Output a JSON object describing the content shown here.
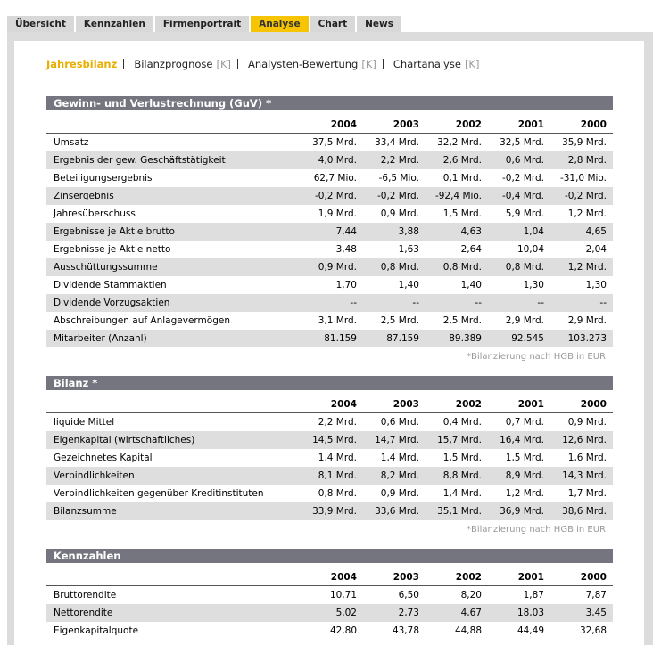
{
  "tabs": [
    "Übersicht",
    "Kennzahlen",
    "Firmenportrait",
    "Analyse",
    "Chart",
    "News"
  ],
  "active_tab": 3,
  "subnav": {
    "active": "Jahresbilanz",
    "items": [
      {
        "label": "Bilanzprognose",
        "marker": "[K]"
      },
      {
        "label": "Analysten-Bewertung",
        "marker": "[K]"
      },
      {
        "label": "Chartanalyse",
        "marker": "[K]"
      }
    ]
  },
  "sections": [
    {
      "title": "Gewinn- und Verlustrechnung (GuV) *",
      "columns": [
        "2004",
        "2003",
        "2002",
        "2001",
        "2000"
      ],
      "rows": [
        {
          "label": "Umsatz",
          "values": [
            "37,5 Mrd.",
            "33,4 Mrd.",
            "32,2 Mrd.",
            "32,5 Mrd.",
            "35,9 Mrd."
          ]
        },
        {
          "label": "Ergebnis der gew. Geschäftstätigkeit",
          "values": [
            "4,0 Mrd.",
            "2,2 Mrd.",
            "2,6 Mrd.",
            "0,6 Mrd.",
            "2,8 Mrd."
          ]
        },
        {
          "label": "Beteiligungsergebnis",
          "values": [
            "62,7 Mio.",
            "-6,5 Mio.",
            "0,1 Mrd.",
            "-0,2 Mrd.",
            "-31,0 Mio."
          ]
        },
        {
          "label": "Zinsergebnis",
          "values": [
            "-0,2 Mrd.",
            "-0,2 Mrd.",
            "-92,4 Mio.",
            "-0,4 Mrd.",
            "-0,2 Mrd."
          ]
        },
        {
          "label": "Jahresüberschuss",
          "values": [
            "1,9 Mrd.",
            "0,9 Mrd.",
            "1,5 Mrd.",
            "5,9 Mrd.",
            "1,2 Mrd."
          ]
        },
        {
          "label": "Ergebnisse je Aktie brutto",
          "values": [
            "7,44",
            "3,88",
            "4,63",
            "1,04",
            "4,65"
          ]
        },
        {
          "label": "Ergebnisse je Aktie netto",
          "values": [
            "3,48",
            "1,63",
            "2,64",
            "10,04",
            "2,04"
          ]
        },
        {
          "label": "Ausschüttungssumme",
          "values": [
            "0,9 Mrd.",
            "0,8 Mrd.",
            "0,8 Mrd.",
            "0,8 Mrd.",
            "1,2 Mrd."
          ]
        },
        {
          "label": "Dividende Stammaktien",
          "values": [
            "1,70",
            "1,40",
            "1,40",
            "1,30",
            "1,30"
          ]
        },
        {
          "label": "Dividende Vorzugsaktien",
          "values": [
            "--",
            "--",
            "--",
            "--",
            "--"
          ]
        },
        {
          "label": "Abschreibungen auf Anlagevermögen",
          "values": [
            "3,1 Mrd.",
            "2,5 Mrd.",
            "2,5 Mrd.",
            "2,9 Mrd.",
            "2,9 Mrd."
          ]
        },
        {
          "label": "Mitarbeiter (Anzahl)",
          "values": [
            "81.159",
            "87.159",
            "89.389",
            "92.545",
            "103.273"
          ]
        }
      ],
      "footnote": "*Bilanzierung nach HGB in EUR"
    },
    {
      "title": "Bilanz *",
      "columns": [
        "2004",
        "2003",
        "2002",
        "2001",
        "2000"
      ],
      "rows": [
        {
          "label": "liquide Mittel",
          "values": [
            "2,2 Mrd.",
            "0,6 Mrd.",
            "0,4 Mrd.",
            "0,7 Mrd.",
            "0,9 Mrd."
          ]
        },
        {
          "label": "Eigenkapital (wirtschaftliches)",
          "values": [
            "14,5 Mrd.",
            "14,7 Mrd.",
            "15,7 Mrd.",
            "16,4 Mrd.",
            "12,6 Mrd."
          ]
        },
        {
          "label": "Gezeichnetes Kapital",
          "values": [
            "1,4 Mrd.",
            "1,4 Mrd.",
            "1,5 Mrd.",
            "1,5 Mrd.",
            "1,6 Mrd."
          ]
        },
        {
          "label": "Verbindlichkeiten",
          "values": [
            "8,1 Mrd.",
            "8,2 Mrd.",
            "8,8 Mrd.",
            "8,9 Mrd.",
            "14,3 Mrd."
          ]
        },
        {
          "label": "Verbindlichkeiten gegenüber Kreditinstituten",
          "values": [
            "0,8 Mrd.",
            "0,9 Mrd.",
            "1,4 Mrd.",
            "1,2 Mrd.",
            "1,7 Mrd."
          ]
        },
        {
          "label": "Bilanzsumme",
          "values": [
            "33,9 Mrd.",
            "33,6 Mrd.",
            "35,1 Mrd.",
            "36,9 Mrd.",
            "38,6 Mrd."
          ]
        }
      ],
      "footnote": "*Bilanzierung nach HGB in EUR"
    },
    {
      "title": "Kennzahlen",
      "columns": [
        "2004",
        "2003",
        "2002",
        "2001",
        "2000"
      ],
      "rows": [
        {
          "label": "Bruttorendite",
          "values": [
            "10,71",
            "6,50",
            "8,20",
            "1,87",
            "7,87"
          ]
        },
        {
          "label": "Nettorendite",
          "values": [
            "5,02",
            "2,73",
            "4,67",
            "18,03",
            "3,45"
          ]
        },
        {
          "label": "Eigenkapitalquote",
          "values": [
            "42,80",
            "43,78",
            "44,88",
            "44,49",
            "32,68"
          ]
        }
      ]
    }
  ]
}
